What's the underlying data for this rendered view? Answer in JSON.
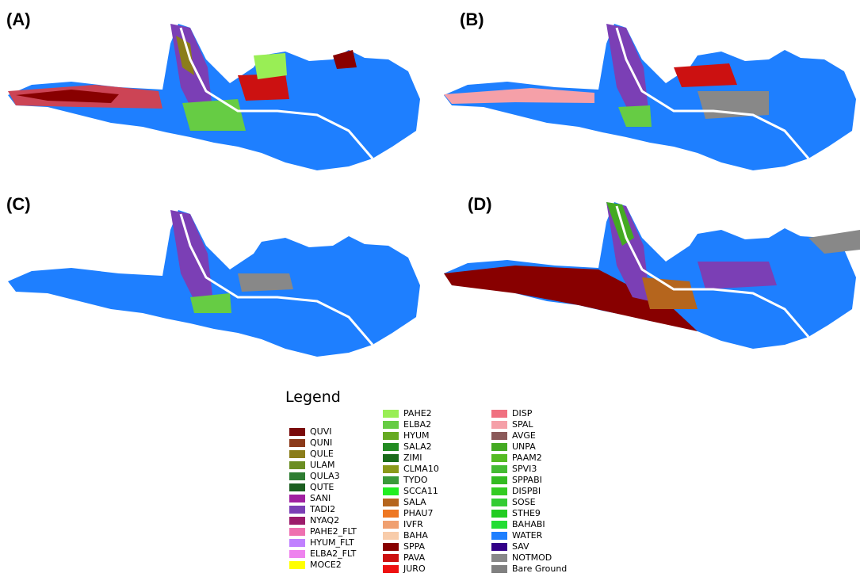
{
  "panels": [
    {
      "label": "(A)"
    },
    {
      "label": "(B)"
    },
    {
      "label": "(C)"
    },
    {
      "label": "(D)"
    }
  ],
  "legend": {
    "title": "Legend",
    "columns": [
      [
        {
          "name": "QUVI",
          "color": "#7a0a0a"
        },
        {
          "name": "QUNI",
          "color": "#8b3a1a"
        },
        {
          "name": "QULE",
          "color": "#8b7d1a"
        },
        {
          "name": "ULAM",
          "color": "#6b8e23"
        },
        {
          "name": "QULA3",
          "color": "#2e7d32"
        },
        {
          "name": "QUTE",
          "color": "#1b5e20"
        },
        {
          "name": "SANI",
          "color": "#a020a0"
        },
        {
          "name": "TADI2",
          "color": "#7b3fb5"
        },
        {
          "name": "NYAQ2",
          "color": "#9c1b6b"
        },
        {
          "name": "PAHE2_FLT",
          "color": "#ee70b0"
        },
        {
          "name": "HYUM_FLT",
          "color": "#c080ff"
        },
        {
          "name": "ELBA2_FLT",
          "color": "#ee82ee"
        },
        {
          "name": "MOCE2",
          "color": "#ffff00"
        }
      ],
      [
        {
          "name": "PAHE2",
          "color": "#99ee55"
        },
        {
          "name": "ELBA2",
          "color": "#66cc44"
        },
        {
          "name": "HYUM",
          "color": "#66aa22"
        },
        {
          "name": "SALA2",
          "color": "#228b22"
        },
        {
          "name": "ZIMI",
          "color": "#1a6b1a"
        },
        {
          "name": "CLMA10",
          "color": "#8b9a1a"
        },
        {
          "name": "TYDO",
          "color": "#3a9a3a"
        },
        {
          "name": "SCCA11",
          "color": "#22ee22"
        },
        {
          "name": "SALA",
          "color": "#b5651d"
        },
        {
          "name": "PHAU7",
          "color": "#ee7722"
        },
        {
          "name": "IVFR",
          "color": "#f0a070"
        },
        {
          "name": "BAHA",
          "color": "#f8ccaa"
        },
        {
          "name": "SPPA",
          "color": "#880000"
        },
        {
          "name": "PAVA",
          "color": "#cc1111"
        },
        {
          "name": "JURO",
          "color": "#ee1111"
        }
      ],
      [
        {
          "name": "DISP",
          "color": "#f07080"
        },
        {
          "name": "SPAL",
          "color": "#f5a0a8"
        },
        {
          "name": "AVGE",
          "color": "#8b5a5a"
        },
        {
          "name": "UNPA",
          "color": "#44aa22"
        },
        {
          "name": "PAAM2",
          "color": "#55bb22"
        },
        {
          "name": "SPVI3",
          "color": "#44bb33"
        },
        {
          "name": "SPPABI",
          "color": "#33bb22"
        },
        {
          "name": "DISPBI",
          "color": "#33cc22"
        },
        {
          "name": "SOSE",
          "color": "#33cc33"
        },
        {
          "name": "STHE9",
          "color": "#22cc22"
        },
        {
          "name": "BAHABI",
          "color": "#22dd33"
        },
        {
          "name": "WATER",
          "color": "#1e7fff"
        },
        {
          "name": "SAV",
          "color": "#330088"
        },
        {
          "name": "NOTMOD",
          "color": "#888888"
        },
        {
          "name": "Bare Ground",
          "color": "#808080"
        }
      ]
    ]
  }
}
